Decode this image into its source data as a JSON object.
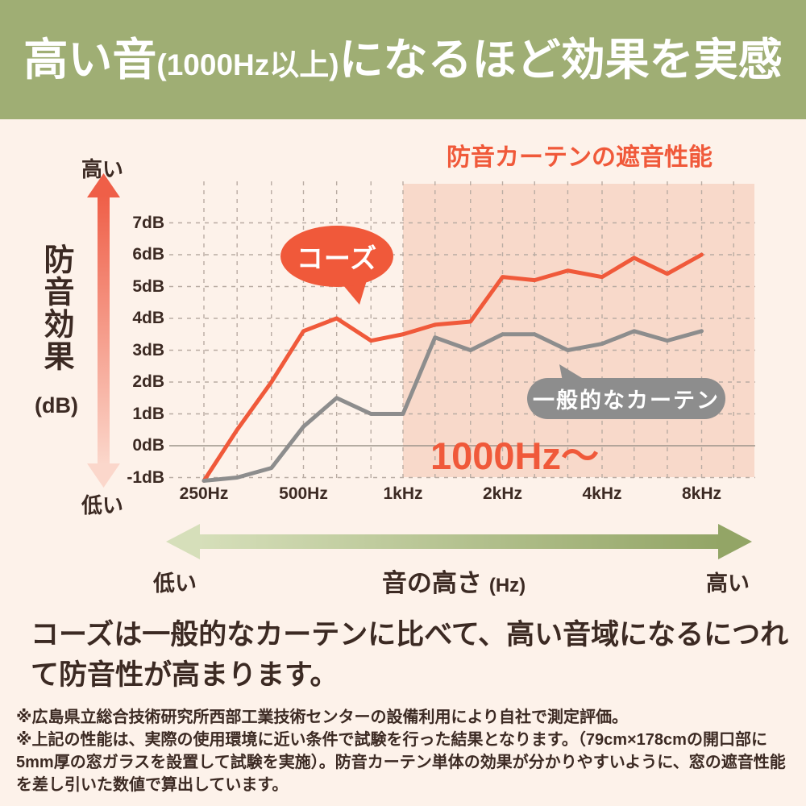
{
  "header": {
    "title_big1": "高い音",
    "title_small": "(1000Hz以上)",
    "title_big2": "になるほど効果を実感"
  },
  "chart": {
    "title": "防音カーテンの遮音性能",
    "highlight_label": "1000Hz〜",
    "y_axis": {
      "label_vertical": "防音効果",
      "label_unit": "(dB)",
      "top_label": "高い",
      "bottom_label": "低い"
    },
    "x_axis": {
      "caption": "音の高さ",
      "caption_unit": "(Hz)",
      "left_label": "低い",
      "right_label": "高い"
    }
  },
  "chart_data": {
    "type": "line",
    "title": "防音カーテンの遮音性能",
    "xlabel": "音の高さ (Hz)",
    "ylabel": "防音効果 (dB)",
    "x_scale": "log",
    "xlim": [
      250,
      10000
    ],
    "ylim": [
      -1.5,
      8
    ],
    "grid": true,
    "x": [
      250,
      315,
      400,
      500,
      630,
      800,
      1000,
      1250,
      1600,
      2000,
      2500,
      3150,
      4000,
      5000,
      6300,
      8000
    ],
    "series": [
      {
        "name": "コーズ",
        "color": "#f0593a",
        "values": [
          -1.1,
          0.5,
          2.0,
          3.6,
          4.0,
          3.3,
          3.5,
          3.8,
          3.9,
          5.3,
          5.2,
          5.5,
          5.3,
          5.9,
          5.4,
          6.0
        ]
      },
      {
        "name": "一般的なカーテン",
        "color": "#8d8d8d",
        "values": [
          -1.1,
          -1.0,
          -0.7,
          0.6,
          1.5,
          1.0,
          1.0,
          3.4,
          3.0,
          3.5,
          3.5,
          3.0,
          3.2,
          3.6,
          3.3,
          3.6
        ]
      }
    ],
    "y_ticks": [
      {
        "value": 7,
        "label": "7dB"
      },
      {
        "value": 6,
        "label": "6dB"
      },
      {
        "value": 5,
        "label": "5dB"
      },
      {
        "value": 4,
        "label": "4dB"
      },
      {
        "value": 3,
        "label": "3dB"
      },
      {
        "value": 2,
        "label": "2dB"
      },
      {
        "value": 1,
        "label": "1dB"
      },
      {
        "value": 0,
        "label": "0dB"
      },
      {
        "value": -1,
        "label": "-1dB"
      }
    ],
    "x_ticks": [
      {
        "value": 250,
        "label": "250Hz"
      },
      {
        "value": 500,
        "label": "500Hz"
      },
      {
        "value": 1000,
        "label": "1kHz"
      },
      {
        "value": 2000,
        "label": "2kHz"
      },
      {
        "value": 4000,
        "label": "4kHz"
      },
      {
        "value": 8000,
        "label": "8kHz"
      }
    ],
    "grid_freqs": [
      250,
      315,
      400,
      500,
      630,
      800,
      1000,
      1250,
      1600,
      2000,
      2500,
      3150,
      4000,
      5000,
      6300,
      8000,
      10000
    ],
    "highlight_from_hz": 1000,
    "highlight_label": "1000Hz〜",
    "legend_position": "on-chart-bubbles"
  },
  "body": {
    "statement_lines": [
      "コーズは一般的なカーテンに比べて、高い音域になるにつれ",
      "て防音性が高まります。"
    ],
    "footnotes": [
      "※広島県立総合技術研究所西部工業技術センターの設備利用により自社で測定評価。",
      "※上記の性能は、実際の使用環境に近い条件で試験を行った結果となります。（79cm×178cmの開口部に",
      "5mm厚の窓ガラスを設置して試験を実施）。防音カーテン単体の効果が分かりやすいように、窓の遮音性能",
      "を差し引いた数値で算出しています。"
    ]
  },
  "colors": {
    "banner_green": "#9fae74",
    "background": "#fdf2ea",
    "accent_red": "#f0593a",
    "series_gray": "#8d8d8d",
    "highlight_pink": "#f8d9ca",
    "grid": "#b9aca3",
    "zero_line": "#9c9489",
    "text_dark": "#3c2a23",
    "arrow_green_light": "#d6dfba",
    "arrow_green_dark": "#93a566",
    "y_arrow_top": "#ef5f48",
    "y_arrow_bottom": "#fbd7cb"
  }
}
